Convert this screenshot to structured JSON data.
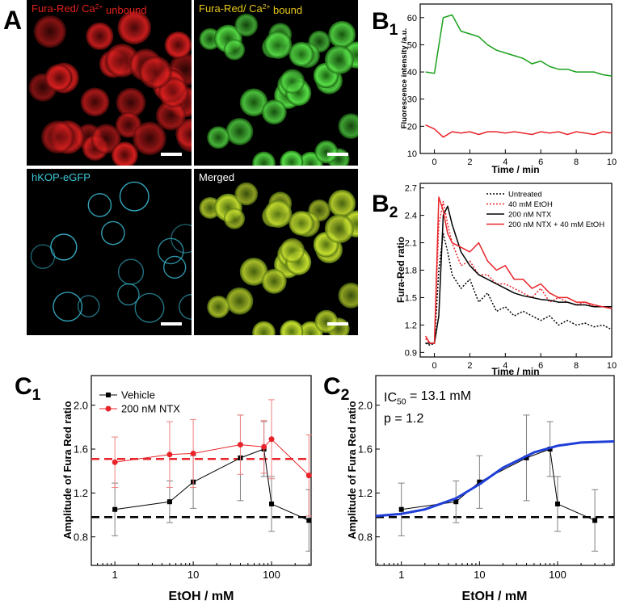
{
  "panel_A": {
    "panel": {
      "text": "A"
    },
    "images": [
      {
        "text": "Fura-Red/ Ca",
        "sup": "2+",
        "rest": " unbound"
      },
      {
        "text": "Fura-Red/ Ca",
        "sup": "2+",
        "rest": " bound"
      },
      {
        "text": "hKOP-eGFP"
      },
      {
        "text": "Merged"
      }
    ]
  },
  "chart_data": [
    {
      "type": "line",
      "panel": {
        "text": "B",
        "sub": "1"
      },
      "y_label": "Fluorescence intensity /a.u.",
      "x_label": "Time / min",
      "xlim": [
        -0.8,
        10
      ],
      "ylim": [
        10,
        65
      ],
      "xticks": [
        0,
        2,
        4,
        6,
        8,
        10
      ],
      "yticks": [
        10,
        20,
        30,
        40,
        50,
        60
      ],
      "series": [
        {
          "color": "#1aa01a",
          "x": [
            -0.5,
            0,
            0.5,
            1,
            1.5,
            2,
            2.5,
            3,
            3.5,
            4,
            4.5,
            5,
            5.5,
            6,
            6.5,
            7,
            7.5,
            8,
            8.5,
            9,
            9.5,
            10
          ],
          "values": [
            40,
            39.5,
            60,
            61,
            55,
            54,
            53,
            50,
            48,
            47,
            46,
            45,
            43,
            44,
            42,
            41,
            41,
            40,
            40,
            40,
            39,
            38.5
          ]
        },
        {
          "color": "#e8242a",
          "x": [
            -0.5,
            0,
            0.5,
            1,
            1.5,
            2,
            2.5,
            3,
            3.5,
            4,
            4.5,
            5,
            5.5,
            6,
            6.5,
            7,
            7.5,
            8,
            8.5,
            9,
            9.5,
            10
          ],
          "values": [
            20.5,
            19,
            16,
            18,
            17.5,
            18,
            17,
            18,
            18,
            17.5,
            18,
            17.5,
            17,
            18,
            17.5,
            18,
            17,
            18,
            17.5,
            17,
            18,
            17.5
          ]
        }
      ]
    },
    {
      "type": "line",
      "panel": {
        "text": "B",
        "sub": "2"
      },
      "y_label": "Fura-Red ratio",
      "x_label": "Time / min",
      "xlim": [
        -0.8,
        10
      ],
      "ylim": [
        0.85,
        2.75
      ],
      "xticks": [
        0,
        2,
        4,
        6,
        8,
        10
      ],
      "yticks": [
        0.9,
        1.2,
        1.5,
        1.8,
        2.1,
        2.4,
        2.7
      ],
      "legend": "upper right",
      "series": [
        {
          "name": "Untreated",
          "color": "#000000",
          "dash": true,
          "x": [
            -0.5,
            -0.25,
            0,
            0.25,
            0.5,
            0.75,
            1,
            1.5,
            2,
            2.5,
            3,
            3.5,
            4,
            4.5,
            5,
            5.5,
            6,
            6.5,
            7,
            7.5,
            8,
            8.5,
            9,
            9.5,
            10
          ],
          "values": [
            1.0,
            0.98,
            1.0,
            1.8,
            2.2,
            2.0,
            1.75,
            1.6,
            1.7,
            1.45,
            1.55,
            1.35,
            1.4,
            1.3,
            1.35,
            1.3,
            1.25,
            1.3,
            1.2,
            1.25,
            1.2,
            1.22,
            1.18,
            1.2,
            1.15
          ]
        },
        {
          "name": "40 mM EtOH",
          "color": "#e8242a",
          "dash": true,
          "x": [
            -0.5,
            -0.25,
            0,
            0.25,
            0.5,
            0.75,
            1,
            1.5,
            2,
            2.5,
            3,
            3.5,
            4,
            4.5,
            5,
            5.5,
            6,
            6.5,
            7,
            7.5,
            8,
            8.5,
            9,
            9.5,
            10
          ],
          "values": [
            1.05,
            1.0,
            1.0,
            2.3,
            2.55,
            2.3,
            2.1,
            1.85,
            1.9,
            1.75,
            1.75,
            1.65,
            1.65,
            1.6,
            1.55,
            1.5,
            1.6,
            1.45,
            1.5,
            1.45,
            1.42,
            1.45,
            1.4,
            1.4,
            1.38
          ]
        },
        {
          "name": "200 nM NTX",
          "color": "#000000",
          "x": [
            -0.5,
            -0.25,
            0,
            0.25,
            0.5,
            0.75,
            1,
            1.5,
            2,
            2.5,
            3,
            3.5,
            4,
            4.5,
            5,
            5.5,
            6,
            6.5,
            7,
            7.5,
            8,
            8.5,
            9,
            9.5,
            10
          ],
          "values": [
            1.0,
            1.0,
            1.0,
            1.3,
            2.4,
            2.5,
            2.3,
            2.0,
            1.85,
            1.75,
            1.7,
            1.65,
            1.6,
            1.55,
            1.52,
            1.5,
            1.48,
            1.47,
            1.45,
            1.45,
            1.42,
            1.42,
            1.4,
            1.4,
            1.4
          ]
        },
        {
          "name": "200 nM NTX + 40 mM EtOH",
          "color": "#e8242a",
          "x": [
            -0.5,
            -0.25,
            0,
            0.25,
            0.5,
            0.75,
            1,
            1.5,
            2,
            2.5,
            3,
            3.5,
            4,
            4.5,
            5,
            5.5,
            6,
            6.5,
            7,
            7.5,
            8,
            8.5,
            9,
            9.5,
            10
          ],
          "values": [
            1.08,
            1.0,
            1.0,
            2.6,
            2.45,
            2.2,
            2.1,
            2.05,
            2.0,
            2.1,
            1.9,
            1.8,
            1.85,
            1.7,
            1.7,
            1.6,
            1.65,
            1.55,
            1.5,
            1.5,
            1.45,
            1.45,
            1.42,
            1.4,
            1.38
          ]
        }
      ]
    },
    {
      "type": "line",
      "panel": {
        "text": "C",
        "sub": "1"
      },
      "y_label": "Amplitude of Fura Red ratio",
      "x_label": "EtOH / mM",
      "xlog": true,
      "xlim": [
        0.5,
        320
      ],
      "ylim": [
        0.54,
        2.27
      ],
      "xticks": [
        1,
        10,
        100
      ],
      "yticks": [
        0.8,
        1.2,
        1.6,
        {
          "value": 2,
          "label": "2.0"
        }
      ],
      "legend": "upper left",
      "reference_lines": [
        {
          "value": 1.51,
          "color": "#e8242a"
        },
        {
          "value": 0.98,
          "color": "#000000"
        }
      ],
      "series": [
        {
          "name": "Vehicle",
          "color": "#000000",
          "marker": "square",
          "error_color": "#808080",
          "x": [
            1,
            5,
            10,
            40,
            80,
            100,
            300
          ],
          "values": [
            1.05,
            1.12,
            1.3,
            1.52,
            1.6,
            1.1,
            0.95
          ],
          "errors": [
            0.24,
            0.19,
            0.24,
            0.39,
            0.25,
            0.25,
            0.28
          ]
        },
        {
          "name": "200 nM NTX",
          "color": "#e8242a",
          "marker": "circle",
          "error_color": "#f07f7f",
          "x": [
            1,
            5,
            10,
            40,
            80,
            100,
            300
          ],
          "values": [
            1.48,
            1.55,
            1.56,
            1.64,
            1.62,
            1.69,
            1.36
          ],
          "errors": [
            0.23,
            0.3,
            0.31,
            0.27,
            0.24,
            0.36,
            0.37
          ]
        }
      ]
    },
    {
      "type": "line",
      "panel": {
        "text": "C",
        "sub": "2"
      },
      "y_label": "Amplitude of Fura Red ratio",
      "x_label": "EtOH / mM",
      "xlog": true,
      "xlim": [
        0.47,
        530
      ],
      "ylim": [
        0.54,
        2.27
      ],
      "xticks": [
        1,
        10,
        100
      ],
      "yticks": [
        0.8,
        1.2,
        1.6,
        {
          "value": 2,
          "label": "2.0"
        }
      ],
      "annotations": [
        {
          "text": "IC",
          "sub": "50",
          "rest": " = 13.1 mM"
        },
        {
          "text": "p = 1.2"
        }
      ],
      "reference_lines": [
        {
          "value": 0.98,
          "color": "#000000"
        }
      ],
      "series": [
        {
          "color": "#000000",
          "marker": "square",
          "error_color": "#808080",
          "x": [
            1,
            5,
            10,
            40,
            80,
            100,
            300
          ],
          "values": [
            1.05,
            1.12,
            1.3,
            1.52,
            1.6,
            1.1,
            0.95
          ],
          "errors": [
            0.24,
            0.19,
            0.24,
            0.39,
            0.25,
            0.25,
            0.28
          ]
        },
        {
          "color": "#1f3fd8",
          "width": 3,
          "x": [
            0.47,
            1,
            2,
            5,
            10,
            20,
            50,
            100,
            200,
            530
          ],
          "values": [
            0.99,
            1.01,
            1.05,
            1.15,
            1.28,
            1.43,
            1.57,
            1.63,
            1.66,
            1.67
          ]
        }
      ]
    }
  ]
}
